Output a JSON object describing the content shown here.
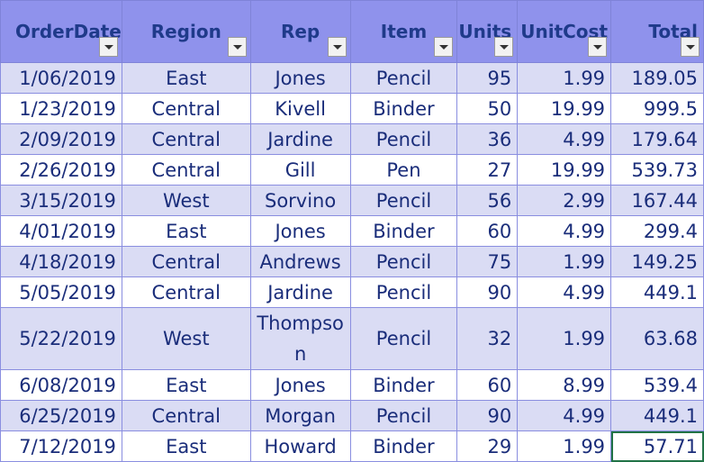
{
  "headers": [
    "OrderDate",
    "Region",
    "Rep",
    "Item",
    "Units",
    "UnitCost",
    "Total"
  ],
  "rows": [
    [
      "1/06/2019",
      "East",
      "Jones",
      "Pencil",
      "95",
      "1.99",
      "189.05"
    ],
    [
      "1/23/2019",
      "Central",
      "Kivell",
      "Binder",
      "50",
      "19.99",
      "999.5"
    ],
    [
      "2/09/2019",
      "Central",
      "Jardine",
      "Pencil",
      "36",
      "4.99",
      "179.64"
    ],
    [
      "2/26/2019",
      "Central",
      "Gill",
      "Pen",
      "27",
      "19.99",
      "539.73"
    ],
    [
      "3/15/2019",
      "West",
      "Sorvino",
      "Pencil",
      "56",
      "2.99",
      "167.44"
    ],
    [
      "4/01/2019",
      "East",
      "Jones",
      "Binder",
      "60",
      "4.99",
      "299.4"
    ],
    [
      "4/18/2019",
      "Central",
      "Andrews",
      "Pencil",
      "75",
      "1.99",
      "149.25"
    ],
    [
      "5/05/2019",
      "Central",
      "Jardine",
      "Pencil",
      "90",
      "4.99",
      "449.1"
    ],
    [
      "5/22/2019",
      "West",
      "Thompson",
      "Pencil",
      "32",
      "1.99",
      "63.68"
    ],
    [
      "6/08/2019",
      "East",
      "Jones",
      "Binder",
      "60",
      "8.99",
      "539.4"
    ],
    [
      "6/25/2019",
      "Central",
      "Morgan",
      "Pencil",
      "90",
      "4.99",
      "449.1"
    ],
    [
      "7/12/2019",
      "East",
      "Howard",
      "Binder",
      "29",
      "1.99",
      "57.71"
    ]
  ]
}
